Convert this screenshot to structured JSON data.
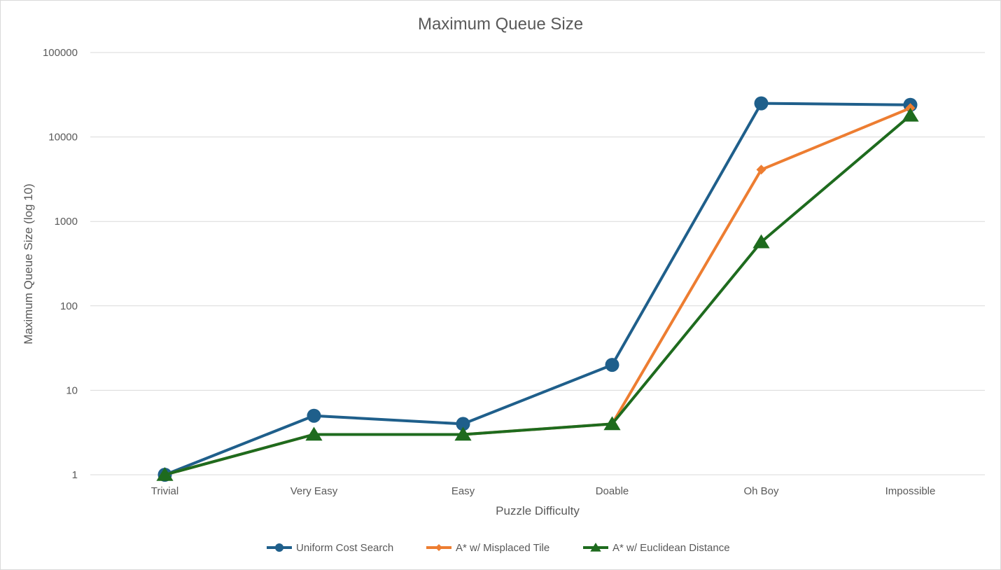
{
  "chart_data": {
    "type": "line",
    "title": "Maximum Queue Size",
    "xlabel": "Puzzle Difficulty",
    "ylabel": "Maximum Queue Size (log 10)",
    "yscale": "log",
    "ylim": [
      1,
      100000
    ],
    "yticks": [
      "1",
      "10",
      "100",
      "1000",
      "10000",
      "100000"
    ],
    "grid": true,
    "legend": "bottom",
    "categories": [
      "Trivial",
      "Very Easy",
      "Easy",
      "Doable",
      "Oh Boy",
      "Impossible"
    ],
    "series": [
      {
        "name": "Uniform Cost Search",
        "color": "#1f5f8b",
        "marker": "circle",
        "values": [
          1,
          5,
          4,
          20,
          25000,
          24000
        ]
      },
      {
        "name": "A* w/ Misplaced Tile",
        "color": "#ed7d31",
        "marker": "diamond",
        "values": [
          1,
          3,
          3,
          4,
          4100,
          22000
        ]
      },
      {
        "name": "A* w/ Euclidean Distance",
        "color": "#1e6b1e",
        "marker": "triangle",
        "values": [
          1,
          3,
          3,
          4,
          570,
          18000
        ]
      }
    ]
  }
}
